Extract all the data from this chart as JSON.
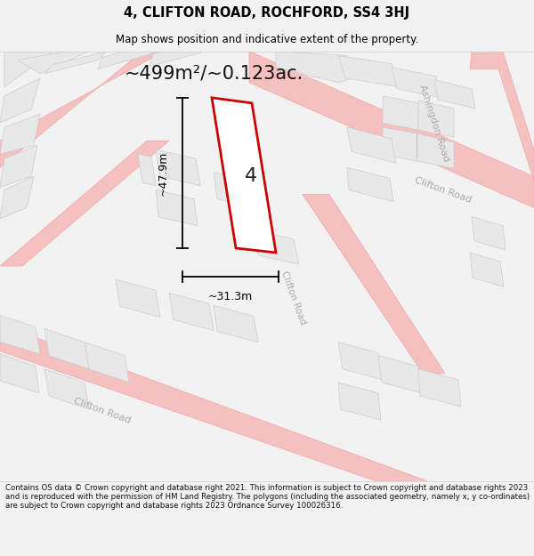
{
  "title": "4, CLIFTON ROAD, ROCHFORD, SS4 3HJ",
  "subtitle": "Map shows position and indicative extent of the property.",
  "area_text": "~499m²/~0.123ac.",
  "dim_width": "~31.3m",
  "dim_height": "~47.9m",
  "plot_number": "4",
  "footer_text": "Contains OS data © Crown copyright and database right 2021. This information is subject to Crown copyright and database rights 2023 and is reproduced with the permission of HM Land Registry. The polygons (including the associated geometry, namely x, y co-ordinates) are subject to Crown copyright and database rights 2023 Ordnance Survey 100026316.",
  "bg_color": "#f2f2f2",
  "map_bg_color": "#ffffff",
  "road_line_color": "#f0b0b0",
  "block_fill": "#e8e8e8",
  "block_edge": "#cccccc",
  "plot_fill": "#ffffff",
  "plot_stroke": "#cc0000",
  "road_label_color": "#aaaaaa",
  "title_color": "#000000",
  "footer_color": "#111111"
}
